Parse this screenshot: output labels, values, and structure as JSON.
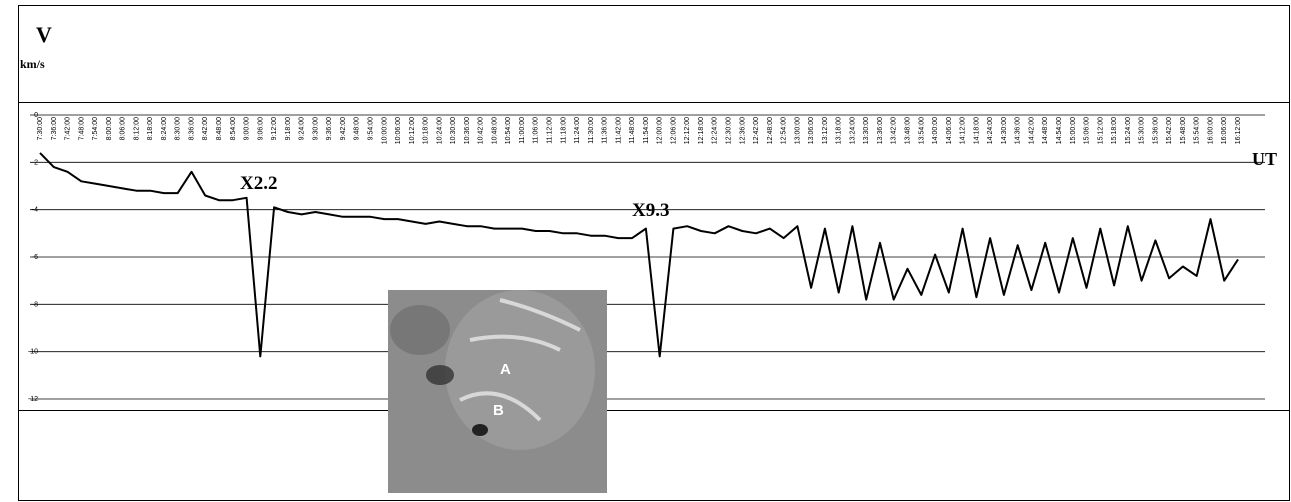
{
  "chart_data": {
    "type": "line",
    "y_label": "V",
    "y_unit": "km/s",
    "x_label": "UT",
    "annotations": [
      "X2.2",
      "X9.3"
    ],
    "inset_labels": [
      "A",
      "B"
    ],
    "categories": [
      "7:30:00",
      "7:36:00",
      "7:42:00",
      "7:48:00",
      "7:54:00",
      "8:00:00",
      "8:06:00",
      "8:12:00",
      "8:18:00",
      "8:24:00",
      "8:30:00",
      "8:36:00",
      "8:42:00",
      "8:48:00",
      "8:54:00",
      "9:00:00",
      "9:06:00",
      "9:12:00",
      "9:18:00",
      "9:24:00",
      "9:30:00",
      "9:36:00",
      "9:42:00",
      "9:48:00",
      "9:54:00",
      "10:00:00",
      "10:06:00",
      "10:12:00",
      "10:18:00",
      "10:24:00",
      "10:30:00",
      "10:36:00",
      "10:42:00",
      "10:48:00",
      "10:54:00",
      "11:00:00",
      "11:06:00",
      "11:12:00",
      "11:18:00",
      "11:24:00",
      "11:30:00",
      "11:36:00",
      "11:42:00",
      "11:48:00",
      "11:54:00",
      "12:00:00",
      "12:06:00",
      "12:12:00",
      "12:18:00",
      "12:24:00",
      "12:30:00",
      "12:36:00",
      "12:42:00",
      "12:48:00",
      "12:54:00",
      "13:00:00",
      "13:06:00",
      "13:12:00",
      "13:18:00",
      "13:24:00",
      "13:30:00",
      "13:36:00",
      "13:42:00",
      "13:48:00",
      "13:54:00",
      "14:00:00",
      "14:06:00",
      "14:12:00",
      "14:18:00",
      "14:24:00",
      "14:30:00",
      "14:36:00",
      "14:42:00",
      "14:48:00",
      "14:54:00",
      "15:00:00",
      "15:06:00",
      "15:12:00",
      "15:18:00",
      "15:24:00",
      "15:30:00",
      "15:36:00",
      "15:42:00",
      "15:48:00",
      "15:54:00",
      "16:00:00",
      "16:06:00",
      "16:12:00"
    ],
    "values": [
      -1.6,
      -2.2,
      -2.4,
      -2.8,
      -2.9,
      -3.0,
      -3.1,
      -3.2,
      -3.2,
      -3.3,
      -3.3,
      -2.4,
      -3.4,
      -3.6,
      -3.6,
      -3.5,
      -10.2,
      -3.9,
      -4.1,
      -4.2,
      -4.1,
      -4.2,
      -4.3,
      -4.3,
      -4.3,
      -4.4,
      -4.4,
      -4.5,
      -4.6,
      -4.5,
      -4.6,
      -4.7,
      -4.7,
      -4.8,
      -4.8,
      -4.8,
      -4.9,
      -4.9,
      -5.0,
      -5.0,
      -5.1,
      -5.1,
      -5.2,
      -5.2,
      -4.8,
      -10.2,
      -4.8,
      -4.7,
      -4.9,
      -5.0,
      -4.7,
      -4.9,
      -5.0,
      -4.8,
      -5.2,
      -4.7,
      -7.3,
      -4.8,
      -7.5,
      -4.7,
      -7.8,
      -5.4,
      -7.8,
      -6.5,
      -7.6,
      -5.9,
      -7.5,
      -4.8,
      -7.7,
      -5.2,
      -7.6,
      -5.5,
      -7.4,
      -5.4,
      -7.5,
      -5.2,
      -7.3,
      -4.8,
      -7.2,
      -4.7,
      -7.0,
      -5.3,
      -6.9,
      -6.4,
      -6.8,
      -4.4,
      -7.0,
      -6.1
    ],
    "color": "#000000",
    "ylim": [
      -12,
      0
    ],
    "yticks": [
      -12,
      -10,
      -8,
      -6,
      -4,
      -2,
      0
    ],
    "grid": true
  }
}
